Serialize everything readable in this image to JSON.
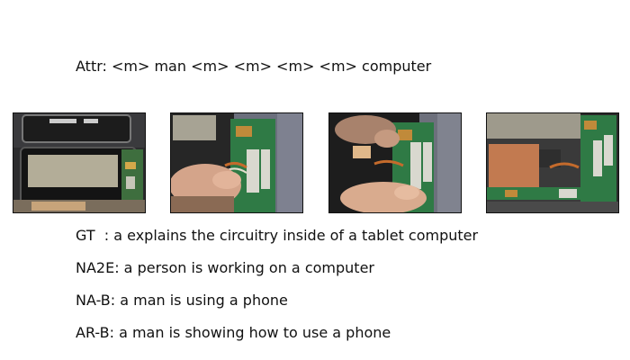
{
  "attr_line": "Attr: <m> man <m> <m> <m> <m> computer",
  "frames": [
    {
      "name": "frame-1",
      "content": "tablet-open-with-screen"
    },
    {
      "name": "frame-2",
      "content": "hand-on-circuit-board"
    },
    {
      "name": "frame-3",
      "content": "fingers-holding-cable"
    },
    {
      "name": "frame-4",
      "content": "tablet-battery-and-board"
    }
  ],
  "captions": {
    "gt": "GT  : a explains the circuitry inside of a tablet computer",
    "na2e": "NA2E: a person is working on a computer",
    "na_b": "NA-B: a man is using a phone",
    "ar_b": "AR-B: a man is showing how to use a phone"
  }
}
